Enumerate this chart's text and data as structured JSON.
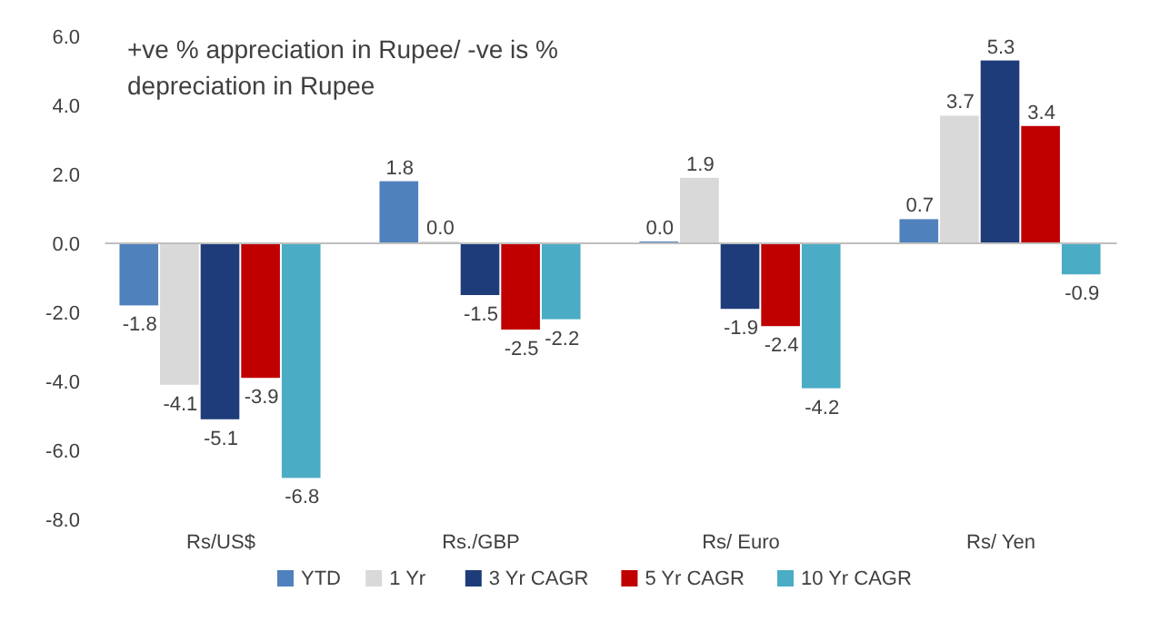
{
  "chart_data": {
    "type": "bar",
    "title": "+ve % appreciation in Rupee/ -ve is % depreciation in Rupee",
    "categories": [
      "Rs/US$",
      "Rs./GBP",
      "Rs/ Euro",
      "Rs/ Yen"
    ],
    "series": [
      {
        "name": "YTD",
        "color": "#4f81bd",
        "values": [
          -1.8,
          1.8,
          0.0,
          0.7
        ],
        "value_labels": [
          "-1.8",
          "1.8",
          "0.0",
          "0.7"
        ]
      },
      {
        "name": "1 Yr",
        "color": "#d9d9d9",
        "values": [
          -4.1,
          0.0,
          1.9,
          3.7
        ],
        "value_labels": [
          "-4.1",
          "0.0",
          "1.9",
          "3.7"
        ]
      },
      {
        "name": "3 Yr CAGR",
        "color": "#1f3c7a",
        "values": [
          -5.1,
          -1.5,
          -1.9,
          5.3
        ],
        "value_labels": [
          "-5.1",
          "-1.5",
          "-1.9",
          "5.3"
        ]
      },
      {
        "name": "5 Yr CAGR",
        "color": "#c00000",
        "values": [
          -3.9,
          -2.5,
          -2.4,
          3.4
        ],
        "value_labels": [
          "-3.9",
          "-2.5",
          "-2.4",
          "3.4"
        ]
      },
      {
        "name": "10 Yr CAGR",
        "color": "#4bacc6",
        "values": [
          -6.8,
          -2.2,
          -4.2,
          -0.9
        ],
        "value_labels": [
          "-6.8",
          "-2.2",
          "-4.2",
          "-0.9"
        ]
      }
    ],
    "ylim": [
      -8,
      6
    ],
    "yticks": [
      {
        "value": -8,
        "label": "-8.0"
      },
      {
        "value": -6,
        "label": "-6.0"
      },
      {
        "value": -4,
        "label": "-4.0"
      },
      {
        "value": -2,
        "label": "-2.0"
      },
      {
        "value": 0,
        "label": "0.0"
      },
      {
        "value": 2,
        "label": "2.0"
      },
      {
        "value": 4,
        "label": "4.0"
      },
      {
        "value": 6,
        "label": "6.0"
      }
    ],
    "legend": "bottom"
  }
}
